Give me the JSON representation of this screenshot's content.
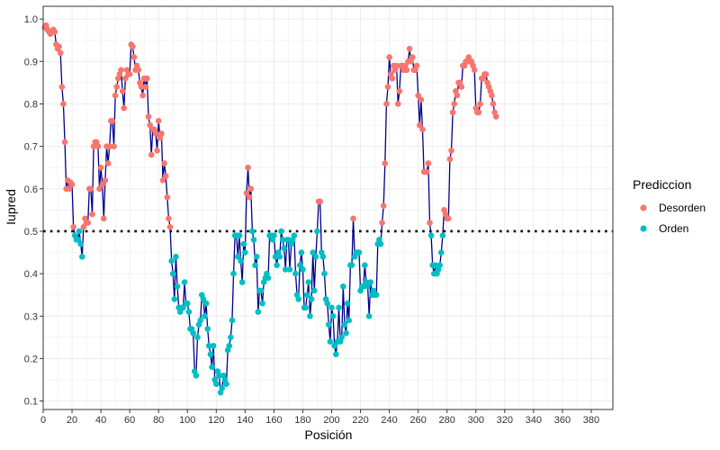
{
  "chart_data": {
    "type": "scatter",
    "title": "",
    "xlabel": "Posición",
    "ylabel": "Iupred",
    "xlim": [
      0,
      395
    ],
    "ylim": [
      0.08,
      1.03
    ],
    "x_ticks": [
      0,
      20,
      40,
      60,
      80,
      100,
      120,
      140,
      160,
      180,
      200,
      220,
      240,
      260,
      280,
      300,
      320,
      340,
      360,
      380
    ],
    "y_ticks": [
      0.1,
      0.2,
      0.3,
      0.4,
      0.5,
      0.6,
      0.7,
      0.8,
      0.9,
      1.0
    ],
    "grid": true,
    "threshold": 0.5,
    "line_color": "#00008B",
    "legend": {
      "title": "Prediccion",
      "position": "right",
      "entries": [
        {
          "label": "Desorden",
          "color": "#F8766D"
        },
        {
          "label": "Orden",
          "color": "#00BFC4"
        }
      ]
    },
    "series": [
      {
        "name": "Iupred",
        "x_start": 1,
        "values": [
          0.98,
          0.985,
          0.975,
          0.97,
          0.965,
          0.97,
          0.975,
          0.97,
          0.94,
          0.93,
          0.935,
          0.92,
          0.84,
          0.8,
          0.71,
          0.6,
          0.62,
          0.6,
          0.615,
          0.61,
          0.51,
          0.49,
          0.48,
          0.48,
          0.5,
          0.47,
          0.44,
          0.51,
          0.53,
          0.52,
          0.52,
          0.6,
          0.6,
          0.54,
          0.7,
          0.71,
          0.71,
          0.7,
          0.6,
          0.65,
          0.61,
          0.53,
          0.62,
          0.7,
          0.66,
          0.7,
          0.76,
          0.76,
          0.7,
          0.82,
          0.84,
          0.86,
          0.87,
          0.88,
          0.83,
          0.79,
          0.86,
          0.88,
          0.87,
          0.87,
          0.94,
          0.935,
          0.91,
          0.88,
          0.89,
          0.88,
          0.85,
          0.84,
          0.82,
          0.86,
          0.84,
          0.86,
          0.77,
          0.75,
          0.68,
          0.74,
          0.74,
          0.73,
          0.69,
          0.76,
          0.72,
          0.73,
          0.62,
          0.66,
          0.63,
          0.58,
          0.53,
          0.51,
          0.43,
          0.4,
          0.34,
          0.44,
          0.37,
          0.32,
          0.31,
          0.32,
          0.32,
          0.38,
          0.33,
          0.33,
          0.31,
          0.27,
          0.27,
          0.26,
          0.17,
          0.16,
          0.25,
          0.28,
          0.29,
          0.35,
          0.34,
          0.3,
          0.33,
          0.27,
          0.23,
          0.21,
          0.18,
          0.23,
          0.15,
          0.14,
          0.17,
          0.16,
          0.12,
          0.13,
          0.16,
          0.15,
          0.14,
          0.22,
          0.23,
          0.25,
          0.29,
          0.4,
          0.49,
          0.49,
          0.44,
          0.49,
          0.43,
          0.38,
          0.47,
          0.45,
          0.59,
          0.65,
          0.58,
          0.6,
          0.5,
          0.48,
          0.42,
          0.44,
          0.31,
          0.36,
          0.36,
          0.33,
          0.38,
          0.39,
          0.4,
          0.39,
          0.49,
          0.49,
          0.48,
          0.49,
          0.44,
          0.42,
          0.45,
          0.44,
          0.5,
          0.48,
          0.46,
          0.41,
          0.48,
          0.48,
          0.41,
          0.47,
          0.48,
          0.49,
          0.4,
          0.35,
          0.34,
          0.42,
          0.45,
          0.41,
          0.32,
          0.32,
          0.35,
          0.38,
          0.3,
          0.34,
          0.45,
          0.36,
          0.44,
          0.5,
          0.57,
          0.57,
          0.45,
          0.44,
          0.4,
          0.34,
          0.33,
          0.28,
          0.24,
          0.32,
          0.3,
          0.23,
          0.21,
          0.24,
          0.32,
          0.24,
          0.25,
          0.37,
          0.28,
          0.26,
          0.33,
          0.29,
          0.42,
          0.42,
          0.53,
          0.44,
          0.45,
          0.45,
          0.45,
          0.36,
          0.37,
          0.37,
          0.42,
          0.38,
          0.37,
          0.3,
          0.38,
          0.35,
          0.36,
          0.35,
          0.35,
          0.47,
          0.48,
          0.47,
          0.52,
          0.56,
          0.66,
          0.8,
          0.84,
          0.91,
          0.87,
          0.86,
          0.89,
          0.88,
          0.89,
          0.8,
          0.83,
          0.89,
          0.89,
          0.88,
          0.89,
          0.88,
          0.9,
          0.93,
          0.9,
          0.91,
          0.88,
          0.88,
          0.89,
          0.82,
          0.75,
          0.81,
          0.74,
          0.64,
          0.64,
          0.64,
          0.66,
          0.52,
          0.49,
          0.42,
          0.4,
          0.42,
          0.4,
          0.41,
          0.42,
          0.45,
          0.49,
          0.55,
          0.54,
          0.53,
          0.53,
          0.67,
          0.69,
          0.78,
          0.8,
          0.83,
          0.82,
          0.85,
          0.85,
          0.84,
          0.89,
          0.89,
          0.9,
          0.9,
          0.91,
          0.9,
          0.9,
          0.89,
          0.88,
          0.79,
          0.78,
          0.78,
          0.8,
          0.86,
          0.86,
          0.87,
          0.87,
          0.85,
          0.84,
          0.83,
          0.82,
          0.8,
          0.78,
          0.77
        ]
      }
    ]
  }
}
